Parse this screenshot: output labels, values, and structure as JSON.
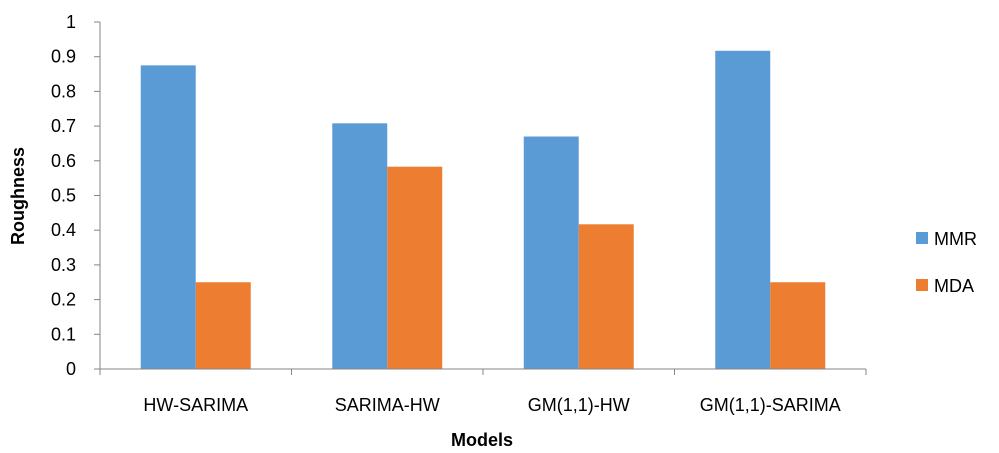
{
  "chart_data": {
    "type": "bar",
    "title": "",
    "xlabel": "Models",
    "ylabel": "Roughness",
    "ylim": [
      0,
      1
    ],
    "yticks": [
      "0",
      "0.1",
      "0.2",
      "0.3",
      "0.4",
      "0.5",
      "0.6",
      "0.7",
      "0.8",
      "0.9",
      "1"
    ],
    "categories": [
      "HW-SARIMA",
      "SARIMA-HW",
      "GM(1,1)-HW",
      "GM(1,1)-SARIMA"
    ],
    "series": [
      {
        "name": "MMR",
        "color": "#5B9BD5",
        "values": [
          0.875,
          0.708,
          0.67,
          0.917
        ]
      },
      {
        "name": "MDA",
        "color": "#ED7D31",
        "values": [
          0.25,
          0.583,
          0.417,
          0.25
        ]
      }
    ],
    "grid": false,
    "legend": "right"
  }
}
